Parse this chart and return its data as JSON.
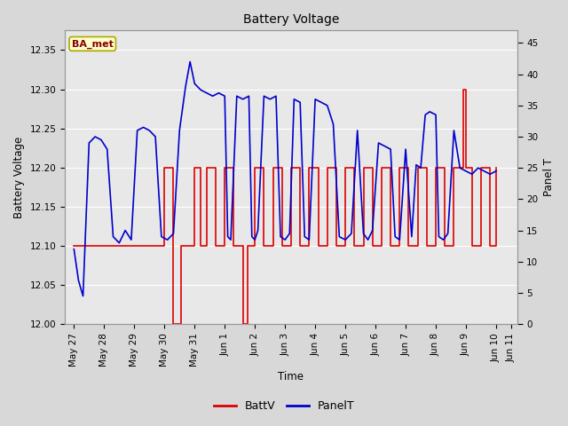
{
  "title": "Battery Voltage",
  "xlabel": "Time",
  "ylabel_left": "Battery Voltage",
  "ylabel_right": "Panel T",
  "annotation_text": "BA_met",
  "annotation_bg": "#ffffcc",
  "annotation_border": "#aaaa00",
  "annotation_text_color": "#880000",
  "ylim_left": [
    12.0,
    12.375
  ],
  "ylim_right": [
    0,
    47
  ],
  "yticks_left": [
    12.0,
    12.05,
    12.1,
    12.15,
    12.2,
    12.25,
    12.3,
    12.35
  ],
  "yticks_right": [
    0,
    5,
    10,
    15,
    20,
    25,
    30,
    35,
    40,
    45
  ],
  "bg_color": "#d8d8d8",
  "plot_bg_color": "#e8e8e8",
  "grid_color": "#ffffff",
  "battv_color": "#dd0000",
  "panelt_color": "#0000cc",
  "legend_battv": "BattV",
  "legend_panelt": "PanelT",
  "battv_data": [
    [
      0.0,
      12.1
    ],
    [
      3.0,
      12.1
    ],
    [
      3.0,
      12.2
    ],
    [
      3.3,
      12.2
    ],
    [
      3.3,
      12.0
    ],
    [
      3.55,
      12.0
    ],
    [
      3.55,
      12.1
    ],
    [
      4.0,
      12.1
    ],
    [
      4.0,
      12.2
    ],
    [
      4.2,
      12.2
    ],
    [
      4.2,
      12.1
    ],
    [
      4.4,
      12.1
    ],
    [
      4.4,
      12.2
    ],
    [
      4.7,
      12.2
    ],
    [
      4.7,
      12.1
    ],
    [
      5.0,
      12.1
    ],
    [
      5.0,
      12.2
    ],
    [
      5.3,
      12.2
    ],
    [
      5.3,
      12.1
    ],
    [
      5.6,
      12.1
    ],
    [
      5.6,
      12.0
    ],
    [
      5.75,
      12.0
    ],
    [
      5.75,
      12.1
    ],
    [
      6.0,
      12.1
    ],
    [
      6.0,
      12.2
    ],
    [
      6.3,
      12.2
    ],
    [
      6.3,
      12.1
    ],
    [
      6.6,
      12.1
    ],
    [
      6.6,
      12.2
    ],
    [
      6.9,
      12.2
    ],
    [
      6.9,
      12.1
    ],
    [
      7.2,
      12.1
    ],
    [
      7.2,
      12.2
    ],
    [
      7.5,
      12.2
    ],
    [
      7.5,
      12.1
    ],
    [
      7.8,
      12.1
    ],
    [
      7.8,
      12.2
    ],
    [
      8.1,
      12.2
    ],
    [
      8.1,
      12.1
    ],
    [
      8.4,
      12.1
    ],
    [
      8.4,
      12.2
    ],
    [
      8.7,
      12.2
    ],
    [
      8.7,
      12.1
    ],
    [
      9.0,
      12.1
    ],
    [
      9.0,
      12.2
    ],
    [
      9.3,
      12.2
    ],
    [
      9.3,
      12.1
    ],
    [
      9.6,
      12.1
    ],
    [
      9.6,
      12.2
    ],
    [
      9.9,
      12.2
    ],
    [
      9.9,
      12.1
    ],
    [
      10.2,
      12.1
    ],
    [
      10.2,
      12.2
    ],
    [
      10.5,
      12.2
    ],
    [
      10.5,
      12.1
    ],
    [
      10.8,
      12.1
    ],
    [
      10.8,
      12.2
    ],
    [
      11.1,
      12.2
    ],
    [
      11.1,
      12.1
    ],
    [
      11.4,
      12.1
    ],
    [
      11.4,
      12.2
    ],
    [
      11.7,
      12.2
    ],
    [
      11.7,
      12.1
    ],
    [
      12.0,
      12.1
    ],
    [
      12.0,
      12.2
    ],
    [
      12.3,
      12.2
    ],
    [
      12.3,
      12.1
    ],
    [
      12.6,
      12.1
    ],
    [
      12.6,
      12.2
    ],
    [
      12.9,
      12.2
    ],
    [
      12.9,
      12.3
    ],
    [
      13.0,
      12.3
    ],
    [
      13.0,
      12.2
    ],
    [
      13.2,
      12.2
    ],
    [
      13.2,
      12.1
    ],
    [
      13.5,
      12.1
    ],
    [
      13.5,
      12.2
    ],
    [
      13.8,
      12.2
    ],
    [
      13.8,
      12.1
    ],
    [
      14.0,
      12.1
    ],
    [
      14.0,
      12.2
    ]
  ],
  "panelt_data": [
    [
      0.0,
      12.0
    ],
    [
      0.15,
      7.0
    ],
    [
      0.3,
      4.5
    ],
    [
      0.5,
      29.0
    ],
    [
      0.7,
      30.0
    ],
    [
      0.9,
      29.5
    ],
    [
      1.1,
      28.0
    ],
    [
      1.3,
      14.0
    ],
    [
      1.5,
      13.0
    ],
    [
      1.7,
      15.0
    ],
    [
      1.9,
      13.5
    ],
    [
      2.1,
      31.0
    ],
    [
      2.3,
      31.5
    ],
    [
      2.5,
      31.0
    ],
    [
      2.7,
      30.0
    ],
    [
      2.9,
      14.0
    ],
    [
      3.1,
      13.5
    ],
    [
      3.3,
      14.5
    ],
    [
      3.5,
      31.0
    ],
    [
      3.7,
      38.0
    ],
    [
      3.85,
      42.0
    ],
    [
      4.0,
      38.5
    ],
    [
      4.2,
      37.5
    ],
    [
      4.4,
      37.0
    ],
    [
      4.6,
      36.5
    ],
    [
      4.8,
      37.0
    ],
    [
      5.0,
      36.5
    ],
    [
      5.1,
      14.0
    ],
    [
      5.2,
      13.5
    ],
    [
      5.4,
      36.5
    ],
    [
      5.6,
      36.0
    ],
    [
      5.8,
      36.5
    ],
    [
      5.9,
      14.0
    ],
    [
      6.0,
      13.5
    ],
    [
      6.1,
      15.0
    ],
    [
      6.3,
      36.5
    ],
    [
      6.5,
      36.0
    ],
    [
      6.7,
      36.5
    ],
    [
      6.85,
      14.0
    ],
    [
      7.0,
      13.5
    ],
    [
      7.15,
      14.5
    ],
    [
      7.3,
      36.0
    ],
    [
      7.5,
      35.5
    ],
    [
      7.65,
      14.0
    ],
    [
      7.8,
      13.5
    ],
    [
      8.0,
      36.0
    ],
    [
      8.2,
      35.5
    ],
    [
      8.4,
      35.0
    ],
    [
      8.6,
      32.0
    ],
    [
      8.8,
      14.0
    ],
    [
      9.0,
      13.5
    ],
    [
      9.2,
      14.5
    ],
    [
      9.4,
      31.0
    ],
    [
      9.6,
      14.5
    ],
    [
      9.75,
      13.5
    ],
    [
      9.9,
      15.0
    ],
    [
      10.1,
      29.0
    ],
    [
      10.3,
      28.5
    ],
    [
      10.5,
      28.0
    ],
    [
      10.65,
      14.0
    ],
    [
      10.8,
      13.5
    ],
    [
      11.0,
      28.0
    ],
    [
      11.2,
      14.0
    ],
    [
      11.35,
      25.5
    ],
    [
      11.5,
      25.0
    ],
    [
      11.65,
      33.5
    ],
    [
      11.8,
      34.0
    ],
    [
      12.0,
      33.5
    ],
    [
      12.1,
      14.0
    ],
    [
      12.25,
      13.5
    ],
    [
      12.4,
      14.5
    ],
    [
      12.6,
      31.0
    ],
    [
      12.8,
      25.0
    ],
    [
      13.0,
      24.5
    ],
    [
      13.2,
      24.0
    ],
    [
      13.4,
      25.0
    ],
    [
      13.6,
      24.5
    ],
    [
      13.8,
      24.0
    ],
    [
      14.0,
      24.5
    ]
  ],
  "x_ticks": [
    0,
    1,
    2,
    3,
    4,
    5,
    6,
    7,
    8,
    9,
    10,
    11,
    12,
    13,
    14
  ],
  "x_tick_labels": [
    "May 27",
    "May 28",
    "May 29",
    "May 30",
    "May 31",
    "Jun 1",
    "Jun 2",
    "Jun 3",
    "Jun 4",
    "Jun 5",
    "Jun 6",
    "Jun 7",
    "Jun 8",
    "Jun 9",
    "Jun 10"
  ],
  "x_extra_tick": 14.5,
  "x_extra_label": "Jun 11",
  "xlim": [
    -0.3,
    14.7
  ]
}
